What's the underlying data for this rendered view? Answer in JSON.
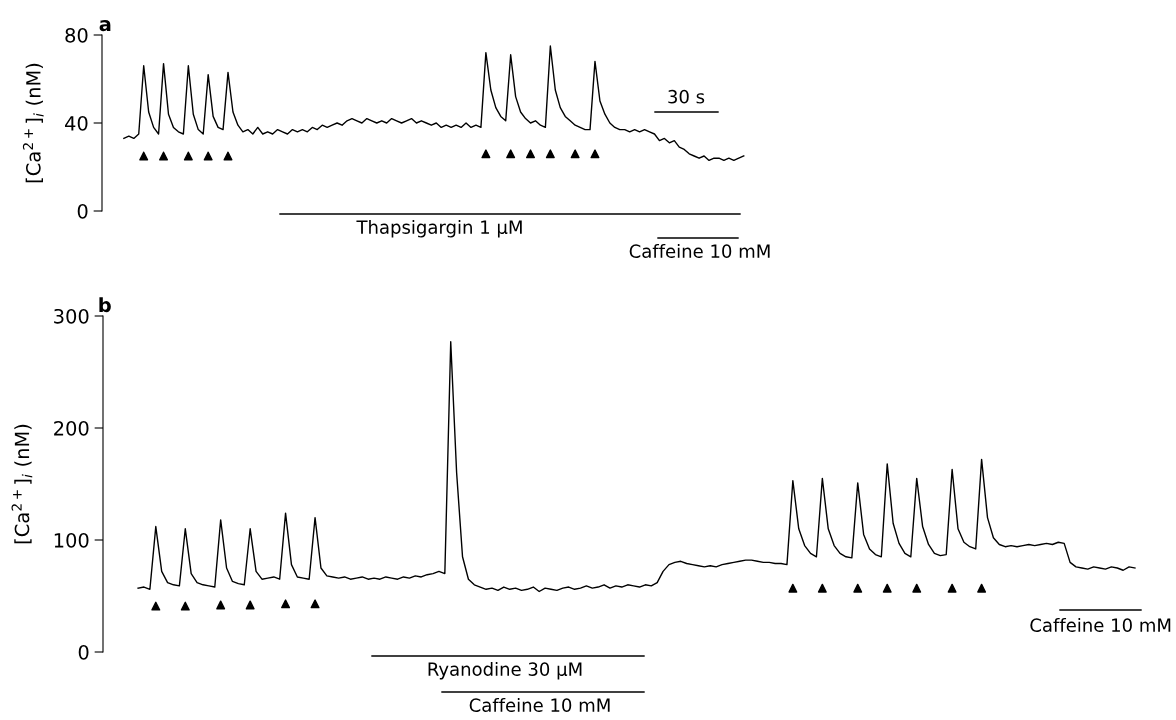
{
  "chart_data": [
    {
      "type": "line",
      "title": "a",
      "ylabel": "[Ca$^{2+}$]$_{i}$ (nM)",
      "tick_labels": "y",
      "ylim": [
        0,
        80
      ],
      "yticks": [
        0,
        40,
        80
      ],
      "categories": [
        null,
        null,
        null,
        null,
        null,
        null,
        null,
        null,
        null,
        null,
        null,
        null,
        null,
        null,
        null,
        null,
        null,
        null,
        null,
        null,
        null,
        null,
        null,
        null,
        null,
        null,
        null,
        null,
        null,
        null,
        null,
        null,
        null,
        null,
        null,
        null,
        null,
        null,
        null,
        null,
        null,
        null,
        null,
        null,
        null,
        null,
        null,
        null,
        null,
        null,
        null,
        null,
        null,
        null,
        null,
        null,
        null,
        null,
        null,
        null,
        null,
        null,
        null,
        null,
        null,
        null,
        null,
        null,
        null,
        null,
        null,
        null,
        null,
        null,
        null,
        null,
        null,
        null,
        null,
        null,
        null,
        null,
        null,
        null,
        null,
        null,
        null,
        null,
        null,
        null,
        null,
        null,
        null,
        null,
        null,
        null,
        null,
        null,
        null,
        null,
        null,
        null,
        null,
        null,
        null,
        null,
        null,
        null,
        null,
        null,
        null,
        null,
        null,
        null,
        null,
        null,
        null,
        null,
        null,
        null,
        null,
        null,
        null,
        null,
        null,
        null
      ],
      "series": [
        {
          "type": "line",
          "color": "#000000",
          "values": [
            33,
            34,
            33,
            35,
            66,
            45,
            38,
            35,
            67,
            44,
            38,
            36,
            35,
            66,
            44,
            37,
            35,
            62,
            43,
            38,
            37,
            63,
            45,
            39,
            36,
            37,
            35,
            38,
            35,
            36,
            35,
            37,
            36,
            35,
            37,
            36,
            37,
            36,
            38,
            37,
            39,
            38,
            39,
            40,
            39,
            41,
            42,
            41,
            40,
            42,
            41,
            40,
            41,
            40,
            42,
            41,
            40,
            41,
            42,
            40,
            41,
            40,
            39,
            40,
            38,
            39,
            38,
            39,
            38,
            40,
            38,
            39,
            38,
            72,
            55,
            47,
            43,
            41,
            71,
            52,
            45,
            42,
            40,
            41,
            39,
            38,
            75,
            55,
            47,
            43,
            41,
            39,
            38,
            37,
            37,
            68,
            50,
            44,
            40,
            38,
            37,
            37,
            36,
            37,
            36,
            37,
            36,
            35,
            32,
            33,
            31,
            32,
            29,
            28,
            26,
            25,
            24,
            25,
            23,
            24,
            24,
            23,
            24,
            23,
            24,
            25
          ]
        },
        {
          "type": "scatter",
          "color": "#000000",
          "marker": "triangle",
          "values": [
            null,
            null,
            null,
            null,
            25,
            null,
            null,
            null,
            25,
            null,
            null,
            null,
            null,
            25,
            null,
            null,
            null,
            25,
            null,
            null,
            null,
            25,
            null,
            null,
            null,
            null,
            null,
            null,
            null,
            null,
            null,
            null,
            null,
            null,
            null,
            null,
            null,
            null,
            null,
            null,
            null,
            null,
            null,
            null,
            null,
            null,
            null,
            null,
            null,
            null,
            null,
            null,
            null,
            null,
            null,
            null,
            null,
            null,
            null,
            null,
            null,
            null,
            null,
            null,
            null,
            null,
            null,
            null,
            null,
            null,
            null,
            null,
            null,
            26,
            null,
            null,
            null,
            null,
            26,
            null,
            null,
            null,
            26,
            null,
            null,
            null,
            26,
            null,
            null,
            null,
            null,
            26,
            null,
            null,
            null,
            26,
            null,
            null,
            null,
            null,
            null,
            null,
            null,
            null,
            null,
            null,
            null,
            null,
            null,
            null,
            null,
            null,
            null,
            null,
            null,
            null,
            null,
            null,
            null,
            null,
            null,
            null,
            null,
            null,
            null,
            null
          ]
        }
      ],
      "annotations": [
        "30 s",
        "Thapsigargin 1 μM",
        "Caffeine 10 mM"
      ]
    },
    {
      "type": "line",
      "title": "b",
      "ylabel": "[Ca$^{2+}$]$_{i}$ (nM)",
      "tick_labels": "y",
      "ylim": [
        0,
        300
      ],
      "yticks": [
        0,
        100,
        200,
        300
      ],
      "categories": [
        null,
        null,
        null,
        null,
        null,
        null,
        null,
        null,
        null,
        null,
        null,
        null,
        null,
        null,
        null,
        null,
        null,
        null,
        null,
        null,
        null,
        null,
        null,
        null,
        null,
        null,
        null,
        null,
        null,
        null,
        null,
        null,
        null,
        null,
        null,
        null,
        null,
        null,
        null,
        null,
        null,
        null,
        null,
        null,
        null,
        null,
        null,
        null,
        null,
        null,
        null,
        null,
        null,
        null,
        null,
        null,
        null,
        null,
        null,
        null,
        null,
        null,
        null,
        null,
        null,
        null,
        null,
        null,
        null,
        null,
        null,
        null,
        null,
        null,
        null,
        null,
        null,
        null,
        null,
        null,
        null,
        null,
        null,
        null,
        null,
        null,
        null,
        null,
        null,
        null,
        null,
        null,
        null,
        null,
        null,
        null,
        null,
        null,
        null,
        null,
        null,
        null,
        null,
        null,
        null,
        null,
        null,
        null,
        null,
        null,
        null,
        null,
        null,
        null,
        null,
        null,
        null,
        null,
        null,
        null,
        null,
        null,
        null,
        null,
        null,
        null,
        null,
        null,
        null,
        null,
        null,
        null,
        null,
        null,
        null,
        null,
        null,
        null,
        null,
        null,
        null,
        null,
        null,
        null,
        null,
        null,
        null,
        null,
        null,
        null,
        null,
        null,
        null,
        null,
        null,
        null,
        null,
        null,
        null,
        null,
        null,
        null,
        null,
        null,
        null,
        null,
        null,
        null,
        null,
        null
      ],
      "series": [
        {
          "type": "line",
          "color": "#000000",
          "values": [
            57,
            58,
            56,
            112,
            72,
            62,
            60,
            59,
            110,
            70,
            62,
            60,
            59,
            58,
            118,
            75,
            63,
            61,
            60,
            110,
            72,
            65,
            66,
            67,
            65,
            124,
            78,
            67,
            66,
            65,
            120,
            75,
            68,
            67,
            66,
            67,
            65,
            66,
            67,
            65,
            66,
            65,
            67,
            66,
            65,
            67,
            66,
            68,
            67,
            69,
            70,
            72,
            70,
            277,
            160,
            85,
            65,
            60,
            58,
            56,
            57,
            55,
            58,
            56,
            57,
            55,
            56,
            58,
            54,
            57,
            56,
            55,
            57,
            58,
            56,
            57,
            59,
            57,
            58,
            60,
            57,
            59,
            58,
            60,
            59,
            58,
            60,
            59,
            62,
            72,
            78,
            80,
            81,
            79,
            78,
            77,
            76,
            77,
            76,
            78,
            79,
            80,
            81,
            82,
            82,
            81,
            80,
            80,
            79,
            79,
            78,
            153,
            110,
            95,
            88,
            85,
            155,
            110,
            95,
            88,
            85,
            84,
            151,
            105,
            92,
            87,
            85,
            168,
            115,
            97,
            88,
            85,
            155,
            112,
            96,
            88,
            86,
            87,
            163,
            110,
            98,
            94,
            92,
            172,
            120,
            102,
            96,
            94,
            95,
            94,
            95,
            96,
            95,
            96,
            97,
            96,
            98,
            97,
            80,
            76,
            75,
            74,
            76,
            75,
            74,
            76,
            75,
            73,
            76,
            75
          ]
        },
        {
          "type": "scatter",
          "color": "#000000",
          "marker": "triangle",
          "values": [
            null,
            null,
            null,
            41,
            null,
            null,
            null,
            null,
            41,
            null,
            null,
            null,
            null,
            null,
            42,
            null,
            null,
            null,
            null,
            42,
            null,
            null,
            null,
            null,
            null,
            43,
            null,
            null,
            null,
            null,
            43,
            null,
            null,
            null,
            null,
            null,
            null,
            null,
            null,
            null,
            null,
            null,
            null,
            null,
            null,
            null,
            null,
            null,
            null,
            null,
            null,
            null,
            null,
            null,
            null,
            null,
            null,
            null,
            null,
            null,
            null,
            null,
            null,
            null,
            null,
            null,
            null,
            null,
            null,
            null,
            null,
            null,
            null,
            null,
            null,
            null,
            null,
            null,
            null,
            null,
            null,
            null,
            null,
            null,
            null,
            null,
            null,
            null,
            null,
            null,
            null,
            null,
            null,
            null,
            null,
            null,
            null,
            null,
            null,
            null,
            null,
            null,
            null,
            null,
            null,
            null,
            null,
            null,
            null,
            null,
            null,
            57,
            null,
            null,
            null,
            null,
            57,
            null,
            null,
            null,
            null,
            null,
            57,
            null,
            null,
            null,
            null,
            57,
            null,
            null,
            null,
            null,
            57,
            null,
            null,
            null,
            null,
            null,
            57,
            null,
            null,
            null,
            null,
            57,
            null,
            null,
            null,
            null,
            null,
            null,
            null,
            null,
            null,
            null,
            null,
            null,
            null,
            null,
            null,
            null,
            null,
            null,
            null,
            null,
            null,
            null,
            null,
            null,
            null,
            null
          ]
        }
      ],
      "annotations": [
        "Ryanodine 30 μM",
        "Caffeine 10 mM",
        "Caffeine 10 mM"
      ]
    }
  ]
}
